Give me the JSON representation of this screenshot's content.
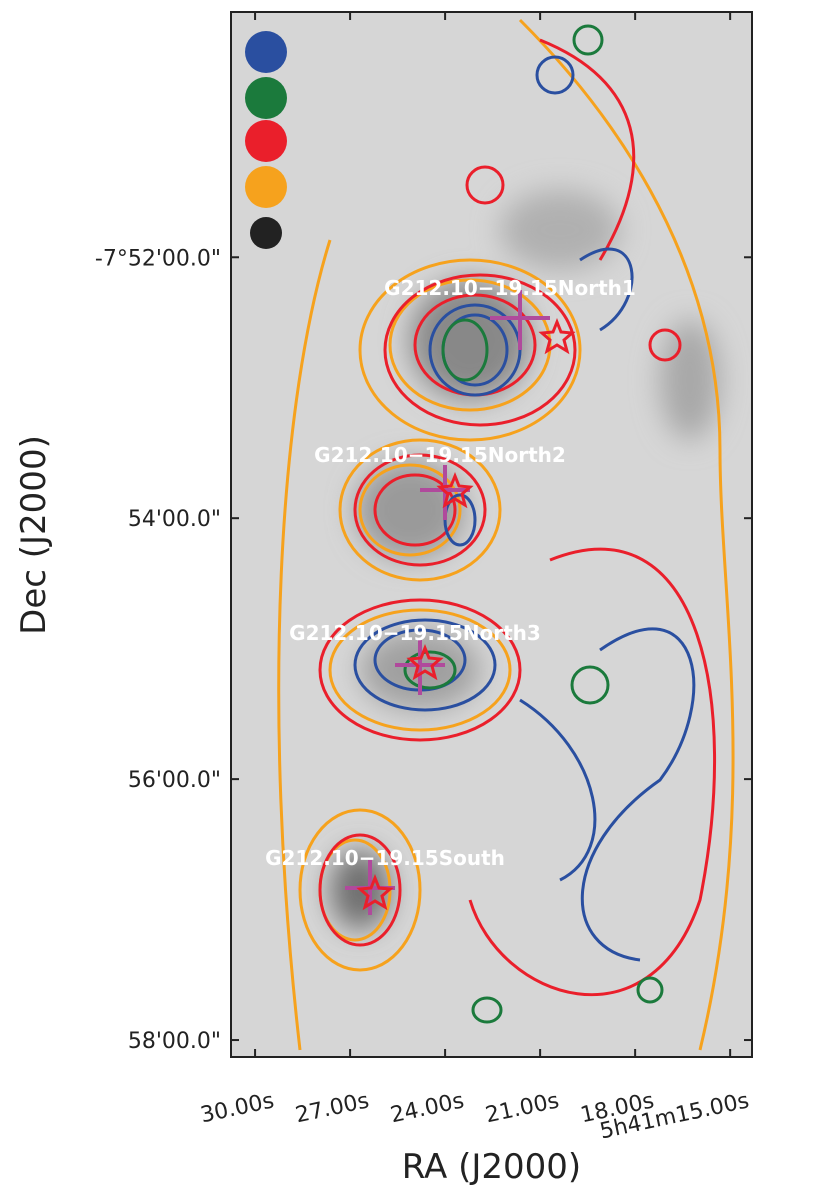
{
  "chart_data": {
    "type": "contour-map",
    "xlabel": "RA (J2000)",
    "ylabel": "Dec (J2000)",
    "xlim": [
      30.76,
      14.31
    ],
    "ylim": [
      58.13,
      50.12
    ],
    "xticks": [
      {
        "value": 30,
        "label": "30.00s"
      },
      {
        "value": 27,
        "label": "27.00s"
      },
      {
        "value": 24,
        "label": "24.00s"
      },
      {
        "value": 21,
        "label": "21.00s"
      },
      {
        "value": 18,
        "label": "18.00s"
      },
      {
        "value": 15,
        "label": "5h41m15.00s"
      }
    ],
    "yticks": [
      {
        "value": 52,
        "label": "-7°52'00.0\""
      },
      {
        "value": 54,
        "label": "54'00.0\""
      },
      {
        "value": 56,
        "label": "56'00.0\""
      },
      {
        "value": 58,
        "label": "58'00.0\""
      }
    ],
    "legend_colors": [
      "#2a4fa0",
      "#1b7a3c",
      "#ea1f2b",
      "#f6a21d",
      "#222222"
    ],
    "annotations": [
      "G212.10−19.15North1",
      "G212.10−19.15North2",
      "G212.10−19.15North3",
      "G212.10−19.15South"
    ]
  }
}
